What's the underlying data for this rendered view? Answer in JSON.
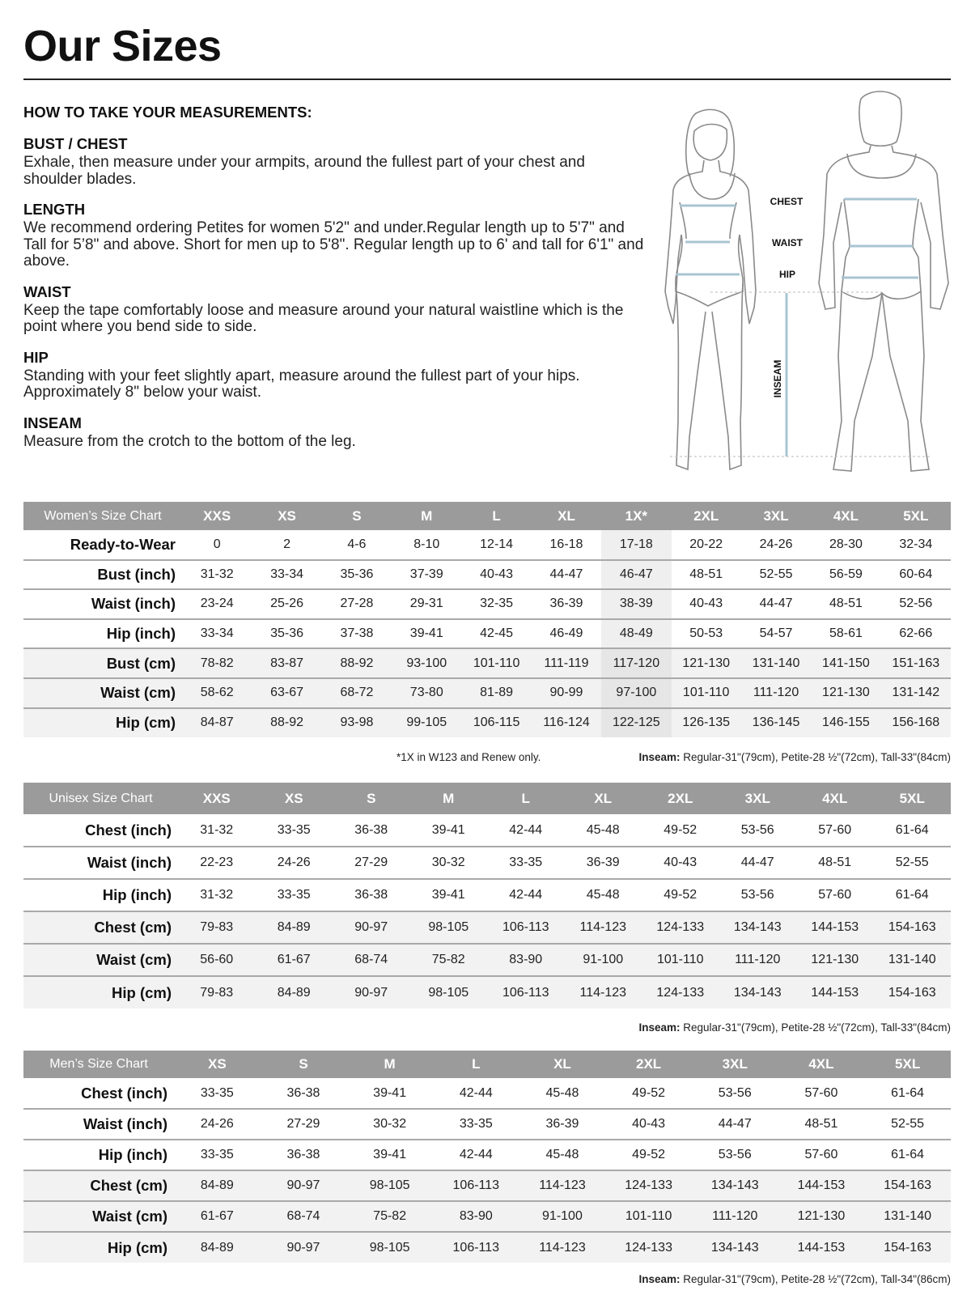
{
  "title": "Our Sizes",
  "instructions": {
    "heading": "HOW TO TAKE YOUR MEASUREMENTS:",
    "sections": [
      {
        "title": "BUST / CHEST",
        "text": "Exhale, then measure under your armpits, around the fullest part of your chest and shoulder blades."
      },
      {
        "title": "LENGTH",
        "text": "We recommend ordering Petites for women 5'2\" and under.Regular length up to 5'7\" and Tall for 5’8\" and above. Short for men up to 5'8\". Regular length up to 6' and tall for 6'1\" and above."
      },
      {
        "title": "WAIST",
        "text": "Keep the tape comfortably loose and measure around your natural waistline which is the point where you bend side to side."
      },
      {
        "title": "HIP",
        "text": "Standing with your feet slightly apart, measure around the fullest part of your hips. Approximately 8\" below your waist."
      },
      {
        "title": "INSEAM",
        "text": "Measure from the crotch to the bottom of the leg."
      }
    ]
  },
  "figure": {
    "labels": {
      "chest": "CHEST",
      "waist": "WAIST",
      "hip": "HIP",
      "inseam": "INSEAM"
    },
    "line_color": "#a9c4d2",
    "outline_color": "#8a8a8a"
  },
  "colors": {
    "header_bg": "#9b9b9b",
    "cm_row_bg": "#f2f2f2",
    "highlight_col": "#efefef"
  },
  "tables": [
    {
      "name": "Women’s Size Chart",
      "highlight_column": "1X*",
      "sizes": [
        "XXS",
        "XS",
        "S",
        "M",
        "L",
        "XL",
        "1X*",
        "2XL",
        "3XL",
        "4XL",
        "5XL"
      ],
      "rows": [
        {
          "label": "Ready-to-Wear",
          "values": [
            "0",
            "2",
            "4-6",
            "8-10",
            "12-14",
            "16-18",
            "17-18",
            "20-22",
            "24-26",
            "28-30",
            "32-34"
          ]
        },
        {
          "label": "Bust (inch)",
          "values": [
            "31-32",
            "33-34",
            "35-36",
            "37-39",
            "40-43",
            "44-47",
            "46-47",
            "48-51",
            "52-55",
            "56-59",
            "60-64"
          ]
        },
        {
          "label": "Waist (inch)",
          "values": [
            "23-24",
            "25-26",
            "27-28",
            "29-31",
            "32-35",
            "36-39",
            "38-39",
            "40-43",
            "44-47",
            "48-51",
            "52-56"
          ]
        },
        {
          "label": "Hip (inch)",
          "values": [
            "33-34",
            "35-36",
            "37-38",
            "39-41",
            "42-45",
            "46-49",
            "48-49",
            "50-53",
            "54-57",
            "58-61",
            "62-66"
          ]
        },
        {
          "label": "Bust (cm)",
          "values": [
            "78-82",
            "83-87",
            "88-92",
            "93-100",
            "101-110",
            "111-119",
            "117-120",
            "121-130",
            "131-140",
            "141-150",
            "151-163"
          ]
        },
        {
          "label": "Waist (cm)",
          "values": [
            "58-62",
            "63-67",
            "68-72",
            "73-80",
            "81-89",
            "90-99",
            "97-100",
            "101-110",
            "111-120",
            "121-130",
            "131-142"
          ]
        },
        {
          "label": "Hip (cm)",
          "values": [
            "84-87",
            "88-92",
            "93-98",
            "99-105",
            "106-115",
            "116-124",
            "122-125",
            "126-135",
            "136-145",
            "146-155",
            "156-168"
          ]
        }
      ],
      "footnote": "*1X in W123 and Renew only.",
      "inseam_label": "Inseam:",
      "inseam_text": " Regular-31\"(79cm), Petite-28 ½\"(72cm), Tall-33\"(84cm)"
    },
    {
      "name": "Unisex Size Chart",
      "sizes": [
        "XXS",
        "XS",
        "S",
        "M",
        "L",
        "XL",
        "2XL",
        "3XL",
        "4XL",
        "5XL"
      ],
      "rows": [
        {
          "label": "Chest (inch)",
          "values": [
            "31-32",
            "33-35",
            "36-38",
            "39-41",
            "42-44",
            "45-48",
            "49-52",
            "53-56",
            "57-60",
            "61-64"
          ]
        },
        {
          "label": "Waist (inch)",
          "values": [
            "22-23",
            "24-26",
            "27-29",
            "30-32",
            "33-35",
            "36-39",
            "40-43",
            "44-47",
            "48-51",
            "52-55"
          ]
        },
        {
          "label": "Hip (inch)",
          "values": [
            "31-32",
            "33-35",
            "36-38",
            "39-41",
            "42-44",
            "45-48",
            "49-52",
            "53-56",
            "57-60",
            "61-64"
          ]
        },
        {
          "label": "Chest (cm)",
          "values": [
            "79-83",
            "84-89",
            "90-97",
            "98-105",
            "106-113",
            "114-123",
            "124-133",
            "134-143",
            "144-153",
            "154-163"
          ]
        },
        {
          "label": "Waist (cm)",
          "values": [
            "56-60",
            "61-67",
            "68-74",
            "75-82",
            "83-90",
            "91-100",
            "101-110",
            "111-120",
            "121-130",
            "131-140"
          ]
        },
        {
          "label": "Hip (cm)",
          "values": [
            "79-83",
            "84-89",
            "90-97",
            "98-105",
            "106-113",
            "114-123",
            "124-133",
            "134-143",
            "144-153",
            "154-163"
          ]
        }
      ],
      "inseam_label": "Inseam:",
      "inseam_text": " Regular-31\"(79cm), Petite-28 ½\"(72cm), Tall-33\"(84cm)"
    },
    {
      "name": "Men’s Size Chart",
      "sizes": [
        "XS",
        "S",
        "M",
        "L",
        "XL",
        "2XL",
        "3XL",
        "4XL",
        "5XL"
      ],
      "rows": [
        {
          "label": "Chest (inch)",
          "values": [
            "33-35",
            "36-38",
            "39-41",
            "42-44",
            "45-48",
            "49-52",
            "53-56",
            "57-60",
            "61-64"
          ]
        },
        {
          "label": "Waist (inch)",
          "values": [
            "24-26",
            "27-29",
            "30-32",
            "33-35",
            "36-39",
            "40-43",
            "44-47",
            "48-51",
            "52-55"
          ]
        },
        {
          "label": "Hip (inch)",
          "values": [
            "33-35",
            "36-38",
            "39-41",
            "42-44",
            "45-48",
            "49-52",
            "53-56",
            "57-60",
            "61-64"
          ]
        },
        {
          "label": "Chest (cm)",
          "values": [
            "84-89",
            "90-97",
            "98-105",
            "106-113",
            "114-123",
            "124-133",
            "134-143",
            "144-153",
            "154-163"
          ]
        },
        {
          "label": "Waist (cm)",
          "values": [
            "61-67",
            "68-74",
            "75-82",
            "83-90",
            "91-100",
            "101-110",
            "111-120",
            "121-130",
            "131-140"
          ]
        },
        {
          "label": "Hip (cm)",
          "values": [
            "84-89",
            "90-97",
            "98-105",
            "106-113",
            "114-123",
            "124-133",
            "134-143",
            "144-153",
            "154-163"
          ]
        }
      ],
      "inseam_label": "Inseam:",
      "inseam_text": " Regular-31\"(79cm), Petite-28 ½\"(72cm), Tall-34\"(86cm)"
    }
  ]
}
